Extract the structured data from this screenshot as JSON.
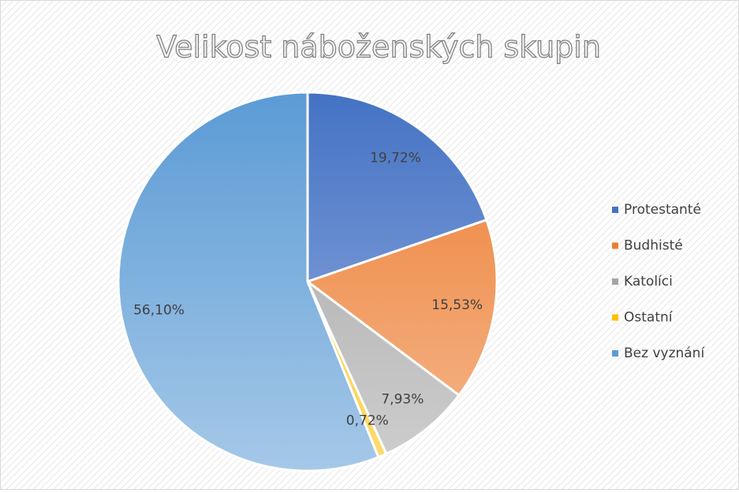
{
  "chart_data": {
    "type": "pie",
    "title": "Velikost náboženských skupin",
    "categories": [
      "Protestanté",
      "Budhisté",
      "Katolíci",
      "Ostatní",
      "Bez vyznání"
    ],
    "values": [
      19.72,
      15.53,
      7.93,
      0.72,
      56.1
    ],
    "value_labels": [
      "19,72%",
      "15,53%",
      "7,93%",
      "0,72%",
      "56,10%"
    ],
    "colors": [
      "#4472c4",
      "#ed7d31",
      "#a5a5a5",
      "#ffc000",
      "#5b9bd5"
    ],
    "legend": "right"
  }
}
